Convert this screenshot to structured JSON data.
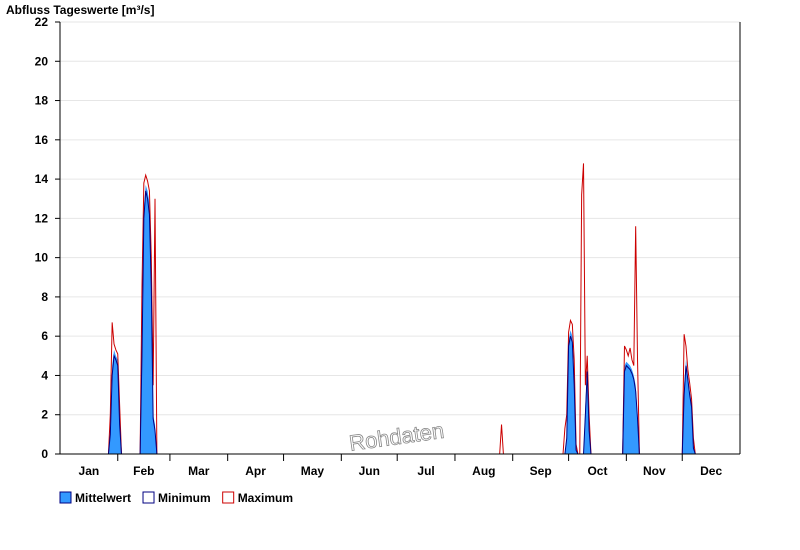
{
  "chart_data": {
    "type": "area",
    "title": "",
    "ylabel": "Abfluss Tageswerte [m³/s]",
    "xlabel": "",
    "watermark": "Rohdaten",
    "ylim": [
      0,
      22
    ],
    "yticks": [
      0,
      2,
      4,
      6,
      8,
      10,
      12,
      14,
      16,
      18,
      20,
      22
    ],
    "grid": true,
    "legend_position": "bottom-left",
    "x_unit": "day-of-year",
    "xlim": [
      1,
      366
    ],
    "month_labels": [
      "Jan",
      "Feb",
      "Mar",
      "Apr",
      "May",
      "Jun",
      "Jul",
      "Aug",
      "Sep",
      "Oct",
      "Nov",
      "Dec"
    ],
    "month_starts": [
      1,
      32,
      60,
      91,
      121,
      152,
      182,
      213,
      244,
      274,
      305,
      335
    ],
    "series": [
      {
        "name": "Mittelwert",
        "color": "#3399ff",
        "style": "filled-area",
        "points": [
          [
            1,
            0
          ],
          [
            27,
            0
          ],
          [
            28,
            1.2
          ],
          [
            29,
            4.5
          ],
          [
            30,
            5.3
          ],
          [
            31,
            5.0
          ],
          [
            32,
            4.8
          ],
          [
            33,
            2.0
          ],
          [
            34,
            0
          ],
          [
            44,
            0
          ],
          [
            45,
            6.0
          ],
          [
            46,
            12.5
          ],
          [
            47,
            13.7
          ],
          [
            48,
            13.4
          ],
          [
            49,
            12.8
          ],
          [
            50,
            9.0
          ],
          [
            51,
            2.0
          ],
          [
            52,
            1.5
          ],
          [
            53,
            0
          ],
          [
            272,
            0
          ],
          [
            273,
            1.0
          ],
          [
            274,
            5.8
          ],
          [
            275,
            6.3
          ],
          [
            276,
            6.0
          ],
          [
            277,
            4.0
          ],
          [
            278,
            0.3
          ],
          [
            279,
            0
          ],
          [
            282,
            0
          ],
          [
            283,
            2.5
          ],
          [
            284,
            4.5
          ],
          [
            285,
            1.5
          ],
          [
            286,
            0
          ],
          [
            303,
            0
          ],
          [
            304,
            4.5
          ],
          [
            305,
            4.7
          ],
          [
            306,
            4.6
          ],
          [
            307,
            4.5
          ],
          [
            308,
            4.3
          ],
          [
            309,
            4.0
          ],
          [
            310,
            3.5
          ],
          [
            311,
            2.0
          ],
          [
            312,
            0
          ],
          [
            335,
            0
          ],
          [
            336,
            3.5
          ],
          [
            337,
            4.8
          ],
          [
            338,
            4.0
          ],
          [
            339,
            3.2
          ],
          [
            340,
            2.6
          ],
          [
            341,
            0.5
          ],
          [
            342,
            0
          ],
          [
            366,
            0
          ]
        ]
      },
      {
        "name": "Minimum",
        "color": "#000080",
        "style": "line",
        "points": [
          [
            1,
            0
          ],
          [
            27,
            0
          ],
          [
            28,
            1.0
          ],
          [
            29,
            4.0
          ],
          [
            30,
            5.0
          ],
          [
            31,
            4.8
          ],
          [
            32,
            4.5
          ],
          [
            33,
            1.5
          ],
          [
            34,
            0
          ],
          [
            44,
            0
          ],
          [
            45,
            5.0
          ],
          [
            46,
            12.0
          ],
          [
            47,
            13.4
          ],
          [
            48,
            13.0
          ],
          [
            49,
            12.2
          ],
          [
            50,
            8.5
          ],
          [
            51,
            1.8
          ],
          [
            52,
            1.2
          ],
          [
            53,
            0
          ],
          [
            272,
            0
          ],
          [
            273,
            0.8
          ],
          [
            274,
            5.5
          ],
          [
            275,
            6.0
          ],
          [
            276,
            5.7
          ],
          [
            277,
            3.5
          ],
          [
            278,
            0.2
          ],
          [
            279,
            0
          ],
          [
            282,
            0
          ],
          [
            283,
            2.0
          ],
          [
            284,
            4.2
          ],
          [
            285,
            1.2
          ],
          [
            286,
            0
          ],
          [
            303,
            0
          ],
          [
            304,
            4.2
          ],
          [
            305,
            4.5
          ],
          [
            306,
            4.4
          ],
          [
            307,
            4.3
          ],
          [
            308,
            4.1
          ],
          [
            309,
            3.8
          ],
          [
            310,
            3.2
          ],
          [
            311,
            1.8
          ],
          [
            312,
            0
          ],
          [
            335,
            0
          ],
          [
            336,
            3.0
          ],
          [
            337,
            4.5
          ],
          [
            338,
            3.8
          ],
          [
            339,
            3.0
          ],
          [
            340,
            2.4
          ],
          [
            341,
            0.3
          ],
          [
            342,
            0
          ],
          [
            366,
            0
          ]
        ]
      },
      {
        "name": "Maximum",
        "color": "#cc0000",
        "style": "line",
        "points": [
          [
            1,
            0
          ],
          [
            27,
            0
          ],
          [
            28,
            2.0
          ],
          [
            29,
            6.7
          ],
          [
            30,
            5.6
          ],
          [
            31,
            5.3
          ],
          [
            32,
            5.1
          ],
          [
            33,
            2.5
          ],
          [
            34,
            0
          ],
          [
            44,
            0
          ],
          [
            45,
            8.5
          ],
          [
            46,
            13.8
          ],
          [
            47,
            14.2
          ],
          [
            48,
            13.9
          ],
          [
            49,
            13.4
          ],
          [
            50,
            10.0
          ],
          [
            51,
            3.5
          ],
          [
            52,
            13.0
          ],
          [
            53,
            0
          ],
          [
            237,
            0
          ],
          [
            238,
            1.5
          ],
          [
            239,
            0
          ],
          [
            265,
            0
          ],
          [
            271,
            0
          ],
          [
            272,
            1.3
          ],
          [
            273,
            2.0
          ],
          [
            274,
            6.2
          ],
          [
            275,
            6.8
          ],
          [
            276,
            6.6
          ],
          [
            277,
            4.8
          ],
          [
            278,
            0.5
          ],
          [
            279,
            0
          ],
          [
            280,
            0
          ],
          [
            281,
            13.2
          ],
          [
            282,
            14.8
          ],
          [
            283,
            3.5
          ],
          [
            284,
            5.0
          ],
          [
            285,
            2.0
          ],
          [
            286,
            0
          ],
          [
            303,
            0
          ],
          [
            304,
            5.5
          ],
          [
            305,
            5.3
          ],
          [
            306,
            5.0
          ],
          [
            307,
            5.4
          ],
          [
            308,
            4.8
          ],
          [
            309,
            4.5
          ],
          [
            310,
            11.6
          ],
          [
            311,
            4.8
          ],
          [
            312,
            0
          ],
          [
            335,
            0
          ],
          [
            336,
            6.1
          ],
          [
            337,
            5.5
          ],
          [
            338,
            4.3
          ],
          [
            339,
            3.6
          ],
          [
            340,
            2.8
          ],
          [
            341,
            0.8
          ],
          [
            342,
            0
          ],
          [
            366,
            0
          ]
        ]
      }
    ]
  }
}
